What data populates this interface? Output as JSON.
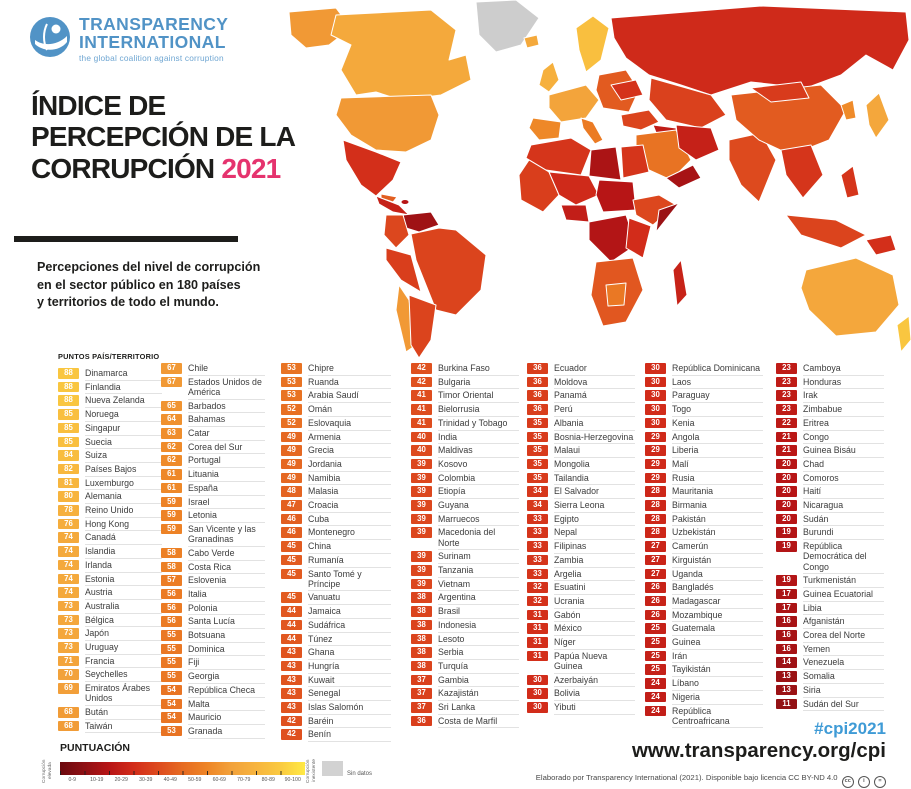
{
  "logo": {
    "line1": "TRANSPARENCY",
    "line2": "INTERNATIONAL",
    "tagline": "the global coalition against corruption",
    "brand_color": "#5193C6"
  },
  "title": {
    "line1": "ÍNDICE DE",
    "line2": "PERCEPCIÓN DE LA",
    "line3": "CORRUPCIÓN",
    "year": "2021",
    "year_color": "#E5336E"
  },
  "intro": {
    "lines": [
      "Percepciones del nivel de corrupción",
      "en el sector público en 180 países",
      "y territorios de todo el mundo."
    ]
  },
  "score_scale": {
    "stops": {
      "0": "#6B090E",
      "10": "#8F1014",
      "20": "#B71516",
      "30": "#D22C1A",
      "40": "#DD4A1E",
      "50": "#E66B22",
      "60": "#EE8526",
      "70": "#F2A23B",
      "80": "#F7B43E",
      "90": "#FACA40",
      "100": "#FFE945"
    }
  },
  "table": {
    "header": "PUNTOS  PAÍS/TERRITORIO",
    "columns": [
      [
        {
          "s": 88,
          "n": "Dinamarca"
        },
        {
          "s": 88,
          "n": "Finlandia"
        },
        {
          "s": 88,
          "n": "Nueva Zelanda"
        },
        {
          "s": 85,
          "n": "Noruega"
        },
        {
          "s": 85,
          "n": "Singapur"
        },
        {
          "s": 85,
          "n": "Suecia"
        },
        {
          "s": 84,
          "n": "Suiza"
        },
        {
          "s": 82,
          "n": "Países Bajos"
        },
        {
          "s": 81,
          "n": "Luxemburgo"
        },
        {
          "s": 80,
          "n": "Alemania"
        },
        {
          "s": 78,
          "n": "Reino Unido"
        },
        {
          "s": 76,
          "n": "Hong Kong"
        },
        {
          "s": 74,
          "n": "Canadá"
        },
        {
          "s": 74,
          "n": "Islandia"
        },
        {
          "s": 74,
          "n": "Irlanda"
        },
        {
          "s": 74,
          "n": "Estonia"
        },
        {
          "s": 74,
          "n": "Austria"
        },
        {
          "s": 73,
          "n": "Australia"
        },
        {
          "s": 73,
          "n": "Bélgica"
        },
        {
          "s": 73,
          "n": "Japón"
        },
        {
          "s": 73,
          "n": "Uruguay"
        },
        {
          "s": 71,
          "n": "Francia"
        },
        {
          "s": 70,
          "n": "Seychelles"
        },
        {
          "s": 69,
          "n": "Emiratos Árabes Unidos"
        },
        {
          "s": 68,
          "n": "Bután"
        },
        {
          "s": 68,
          "n": "Taiwán"
        }
      ],
      [
        {
          "s": 67,
          "n": "Chile"
        },
        {
          "s": 67,
          "n": "Estados Unidos de América"
        },
        {
          "s": 65,
          "n": "Barbados"
        },
        {
          "s": 64,
          "n": "Bahamas"
        },
        {
          "s": 63,
          "n": "Catar"
        },
        {
          "s": 62,
          "n": "Corea del Sur"
        },
        {
          "s": 62,
          "n": "Portugal"
        },
        {
          "s": 61,
          "n": "Lituania"
        },
        {
          "s": 61,
          "n": "España"
        },
        {
          "s": 59,
          "n": "Israel"
        },
        {
          "s": 59,
          "n": "Letonia"
        },
        {
          "s": 59,
          "n": "San Vicente y las Granadinas"
        },
        {
          "s": 58,
          "n": "Cabo Verde"
        },
        {
          "s": 58,
          "n": "Costa Rica"
        },
        {
          "s": 57,
          "n": "Eslovenia"
        },
        {
          "s": 56,
          "n": "Italia"
        },
        {
          "s": 56,
          "n": "Polonia"
        },
        {
          "s": 56,
          "n": "Santa Lucía"
        },
        {
          "s": 55,
          "n": "Botsuana"
        },
        {
          "s": 55,
          "n": "Dominica"
        },
        {
          "s": 55,
          "n": "Fiji"
        },
        {
          "s": 55,
          "n": "Georgia"
        },
        {
          "s": 54,
          "n": "República Checa"
        },
        {
          "s": 54,
          "n": "Malta"
        },
        {
          "s": 54,
          "n": "Mauricio"
        },
        {
          "s": 53,
          "n": "Granada"
        }
      ],
      [
        {
          "s": 53,
          "n": "Chipre"
        },
        {
          "s": 53,
          "n": "Ruanda"
        },
        {
          "s": 53,
          "n": "Arabia Saudí"
        },
        {
          "s": 52,
          "n": "Omán"
        },
        {
          "s": 52,
          "n": "Eslovaquia"
        },
        {
          "s": 49,
          "n": "Armenia"
        },
        {
          "s": 49,
          "n": "Grecia"
        },
        {
          "s": 49,
          "n": "Jordania"
        },
        {
          "s": 49,
          "n": "Namibia"
        },
        {
          "s": 48,
          "n": "Malasia"
        },
        {
          "s": 47,
          "n": "Croacia"
        },
        {
          "s": 46,
          "n": "Cuba"
        },
        {
          "s": 46,
          "n": "Montenegro"
        },
        {
          "s": 45,
          "n": "China"
        },
        {
          "s": 45,
          "n": "Rumanía"
        },
        {
          "s": 45,
          "n": "Santo Tomé y Príncipe"
        },
        {
          "s": 45,
          "n": "Vanuatu"
        },
        {
          "s": 44,
          "n": "Jamaica"
        },
        {
          "s": 44,
          "n": "Sudáfrica"
        },
        {
          "s": 44,
          "n": "Túnez"
        },
        {
          "s": 43,
          "n": "Ghana"
        },
        {
          "s": 43,
          "n": "Hungría"
        },
        {
          "s": 43,
          "n": "Kuwait"
        },
        {
          "s": 43,
          "n": "Senegal"
        },
        {
          "s": 43,
          "n": "Islas Salomón"
        },
        {
          "s": 42,
          "n": "Baréin"
        },
        {
          "s": 42,
          "n": "Benín"
        }
      ],
      [
        {
          "s": 42,
          "n": "Burkina Faso"
        },
        {
          "s": 42,
          "n": "Bulgaria"
        },
        {
          "s": 41,
          "n": "Timor Oriental"
        },
        {
          "s": 41,
          "n": "Bielorrusia"
        },
        {
          "s": 41,
          "n": "Trinidad y Tobago"
        },
        {
          "s": 40,
          "n": "India"
        },
        {
          "s": 40,
          "n": "Maldivas"
        },
        {
          "s": 39,
          "n": "Kosovo"
        },
        {
          "s": 39,
          "n": "Colombia"
        },
        {
          "s": 39,
          "n": "Etiopía"
        },
        {
          "s": 39,
          "n": "Guyana"
        },
        {
          "s": 39,
          "n": "Marruecos"
        },
        {
          "s": 39,
          "n": "Macedonia del Norte"
        },
        {
          "s": 39,
          "n": "Surinam"
        },
        {
          "s": 39,
          "n": "Tanzania"
        },
        {
          "s": 39,
          "n": "Vietnam"
        },
        {
          "s": 38,
          "n": "Argentina"
        },
        {
          "s": 38,
          "n": "Brasil"
        },
        {
          "s": 38,
          "n": "Indonesia"
        },
        {
          "s": 38,
          "n": "Lesoto"
        },
        {
          "s": 38,
          "n": "Serbia"
        },
        {
          "s": 38,
          "n": "Turquía"
        },
        {
          "s": 37,
          "n": "Gambia"
        },
        {
          "s": 37,
          "n": "Kazajistán"
        },
        {
          "s": 37,
          "n": "Sri Lanka"
        },
        {
          "s": 36,
          "n": "Costa de Marfil"
        }
      ],
      [
        {
          "s": 36,
          "n": "Ecuador"
        },
        {
          "s": 36,
          "n": "Moldova"
        },
        {
          "s": 36,
          "n": "Panamá"
        },
        {
          "s": 36,
          "n": "Perú"
        },
        {
          "s": 35,
          "n": "Albania"
        },
        {
          "s": 35,
          "n": "Bosnia-Herzegovina"
        },
        {
          "s": 35,
          "n": "Malaui"
        },
        {
          "s": 35,
          "n": "Mongolia"
        },
        {
          "s": 35,
          "n": "Tailandia"
        },
        {
          "s": 34,
          "n": "El Salvador"
        },
        {
          "s": 34,
          "n": "Sierra Leona"
        },
        {
          "s": 33,
          "n": "Egipto"
        },
        {
          "s": 33,
          "n": "Nepal"
        },
        {
          "s": 33,
          "n": "Filipinas"
        },
        {
          "s": 33,
          "n": "Zambia"
        },
        {
          "s": 33,
          "n": "Argelia"
        },
        {
          "s": 32,
          "n": "Esuatini"
        },
        {
          "s": 32,
          "n": "Ucrania"
        },
        {
          "s": 31,
          "n": "Gabón"
        },
        {
          "s": 31,
          "n": "México"
        },
        {
          "s": 31,
          "n": "Níger"
        },
        {
          "s": 31,
          "n": "Papúa Nueva Guinea"
        },
        {
          "s": 30,
          "n": "Azerbaiyán"
        },
        {
          "s": 30,
          "n": "Bolivia"
        },
        {
          "s": 30,
          "n": "Yibuti"
        }
      ],
      [
        {
          "s": 30,
          "n": "República Dominicana"
        },
        {
          "s": 30,
          "n": "Laos"
        },
        {
          "s": 30,
          "n": "Paraguay"
        },
        {
          "s": 30,
          "n": "Togo"
        },
        {
          "s": 30,
          "n": "Kenia"
        },
        {
          "s": 29,
          "n": "Angola"
        },
        {
          "s": 29,
          "n": "Liberia"
        },
        {
          "s": 29,
          "n": "Malí"
        },
        {
          "s": 29,
          "n": "Rusia"
        },
        {
          "s": 28,
          "n": "Mauritania"
        },
        {
          "s": 28,
          "n": "Birmania"
        },
        {
          "s": 28,
          "n": "Pakistán"
        },
        {
          "s": 28,
          "n": "Uzbekistán"
        },
        {
          "s": 27,
          "n": "Camerún"
        },
        {
          "s": 27,
          "n": "Kirguistán"
        },
        {
          "s": 27,
          "n": "Uganda"
        },
        {
          "s": 26,
          "n": "Bangladés"
        },
        {
          "s": 26,
          "n": "Madagascar"
        },
        {
          "s": 26,
          "n": "Mozambique"
        },
        {
          "s": 25,
          "n": "Guatemala"
        },
        {
          "s": 25,
          "n": "Guinea"
        },
        {
          "s": 25,
          "n": "Irán"
        },
        {
          "s": 25,
          "n": "Tayikistán"
        },
        {
          "s": 24,
          "n": "Líbano"
        },
        {
          "s": 24,
          "n": "Nigeria"
        },
        {
          "s": 24,
          "n": "República Centroafricana"
        }
      ],
      [
        {
          "s": 23,
          "n": "Camboya"
        },
        {
          "s": 23,
          "n": "Honduras"
        },
        {
          "s": 23,
          "n": "Irak"
        },
        {
          "s": 23,
          "n": "Zimbabue"
        },
        {
          "s": 22,
          "n": "Eritrea"
        },
        {
          "s": 21,
          "n": "Congo"
        },
        {
          "s": 21,
          "n": "Guinea Bisáu"
        },
        {
          "s": 20,
          "n": "Chad"
        },
        {
          "s": 20,
          "n": "Comoros"
        },
        {
          "s": 20,
          "n": "Haití"
        },
        {
          "s": 20,
          "n": "Nicaragua"
        },
        {
          "s": 20,
          "n": "Sudán"
        },
        {
          "s": 19,
          "n": "Burundi"
        },
        {
          "s": 19,
          "n": "República Democrática del Congo"
        },
        {
          "s": 19,
          "n": "Turkmenistán"
        },
        {
          "s": 17,
          "n": "Guinea Ecuatorial"
        },
        {
          "s": 17,
          "n": "Libia"
        },
        {
          "s": 16,
          "n": "Afganistán"
        },
        {
          "s": 16,
          "n": "Corea del Norte"
        },
        {
          "s": 16,
          "n": "Yemen"
        },
        {
          "s": 14,
          "n": "Venezuela"
        },
        {
          "s": 13,
          "n": "Somalia"
        },
        {
          "s": 13,
          "n": "Siria"
        },
        {
          "s": 11,
          "n": "Sudán del Sur"
        }
      ]
    ]
  },
  "legend": {
    "title": "PUNTUACIÓN",
    "left_label": "Corrupción\nelevada",
    "right_label": "Corrupción\ninexistente",
    "no_data_label": "Sin datos",
    "no_data_color": "#D2D2D2",
    "ticks": [
      "0-9",
      "10-19",
      "20-29",
      "30-39",
      "40-49",
      "50-59",
      "60-69",
      "70-79",
      "80-89",
      "90-100"
    ]
  },
  "footer": {
    "hashtag": "#cpi2021",
    "hashtag_color": "#3F9BD6",
    "url": "www.transparency.org/cpi",
    "attribution": "Elaborado por Transparency International (2021). Disponible bajo licencia CC BY-ND 4.0",
    "cc_icons": [
      "cc",
      "i",
      "="
    ]
  },
  "map": {
    "no_data_color": "#CDCDCD",
    "regions": {
      "greenland": "nodata",
      "alaska": 67,
      "canada": 74,
      "usa": 67,
      "mexico": 31,
      "central_america": 25,
      "cuba": 46,
      "hispaniola": 20,
      "venezuela": 14,
      "colombia": 39,
      "peru": 36,
      "brazil": 38,
      "chile": 67,
      "argentina": 38,
      "iceland": 74,
      "scandinavia": 85,
      "uk": 78,
      "west_europe": 71,
      "iberia": 61,
      "italy": 56,
      "east_europe": 45,
      "ukraine": 32,
      "russia": 29,
      "central_asia": 37,
      "turkey": 38,
      "iraq_syria": 23,
      "saudi": 53,
      "iran": 25,
      "yemen": 16,
      "maghreb": 33,
      "libya": 17,
      "egypt": 33,
      "west_africa": 36,
      "sahel": 29,
      "nigeria": 24,
      "sudan": 20,
      "horn": 39,
      "somalia": 13,
      "drc": 19,
      "east_africa": 30,
      "southern_africa": 44,
      "botswana": 55,
      "madagascar": 26,
      "india": 40,
      "china": 45,
      "mongolia": 35,
      "se_asia": 33,
      "indonesia": 38,
      "philippines": 33,
      "japan": 73,
      "korea": 62,
      "png": 31,
      "australia": 73,
      "new_zealand": 88
    }
  }
}
